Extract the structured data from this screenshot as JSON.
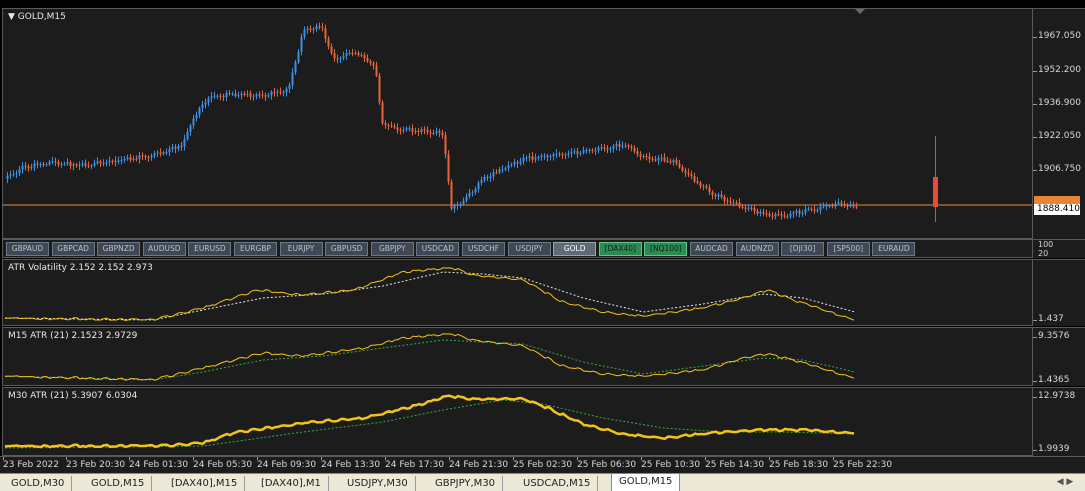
{
  "main_chart": {
    "title": "GOLD,M15",
    "price_levels": [
      "1967.050",
      "1952.200",
      "1936.900",
      "1922.050",
      "1906.750"
    ],
    "current_price": "1888.410",
    "colors": {
      "bull": "#3b8fe6",
      "bear": "#e8643a",
      "price_line": "#e88a3a",
      "pending_bar": "#e84a3a"
    }
  },
  "symbol_buttons": [
    {
      "label": "GBPAUD",
      "state": "normal"
    },
    {
      "label": "GBPCAD",
      "state": "normal"
    },
    {
      "label": "GBPNZD",
      "state": "normal"
    },
    {
      "label": "AUDUSD",
      "state": "normal"
    },
    {
      "label": "EURUSD",
      "state": "normal"
    },
    {
      "label": "EURGBP",
      "state": "normal"
    },
    {
      "label": "EURJPY",
      "state": "normal"
    },
    {
      "label": "GBPUSD",
      "state": "normal"
    },
    {
      "label": "GBPJPY",
      "state": "normal"
    },
    {
      "label": "USDCAD",
      "state": "normal"
    },
    {
      "label": "USDCHF",
      "state": "normal"
    },
    {
      "label": "USDJPY",
      "state": "normal"
    },
    {
      "label": "GOLD",
      "state": "active"
    },
    {
      "label": "[DAX40]",
      "state": "green"
    },
    {
      "label": "[NQ100]",
      "state": "green"
    },
    {
      "label": "AUDCAD",
      "state": "normal"
    },
    {
      "label": "AUDNZD",
      "state": "normal"
    },
    {
      "label": "[DJI30]",
      "state": "normal"
    },
    {
      "label": "[SP500]",
      "state": "normal"
    },
    {
      "label": "EURAUD",
      "state": "normal"
    }
  ],
  "symbol_bar_scale": [
    "100",
    "20"
  ],
  "indicator_panes": [
    {
      "label": "ATR Volatility 2.152 2.152 2.973",
      "scale_top": "",
      "scale_bottom": "1.437"
    },
    {
      "label": "M15  ATR (21) 2.1523 2.9729",
      "scale_top": "9.3576",
      "scale_bottom": "1.4365"
    },
    {
      "label": "M30  ATR (21) 5.3907 6.0304",
      "scale_top": "12.9738",
      "scale_bottom": "1.9939"
    }
  ],
  "time_labels": [
    "23 Feb 2022",
    "23 Feb 20:30",
    "24 Feb 01:30",
    "24 Feb 05:30",
    "24 Feb 09:30",
    "24 Feb 13:30",
    "24 Feb 17:30",
    "24 Feb 21:30",
    "25 Feb 02:30",
    "25 Feb 06:30",
    "25 Feb 10:30",
    "25 Feb 14:30",
    "25 Feb 18:30",
    "25 Feb 22:30"
  ],
  "tabs": [
    {
      "label": "GOLD,M30",
      "active": false
    },
    {
      "label": "GOLD,M15",
      "active": false
    },
    {
      "label": "[DAX40],M15",
      "active": false
    },
    {
      "label": "[DAX40],M1",
      "active": false
    },
    {
      "label": "USDJPY,M30",
      "active": false
    },
    {
      "label": "GBPJPY,M30",
      "active": false
    },
    {
      "label": "USDCAD,M15",
      "active": false
    },
    {
      "label": "GOLD,M15",
      "active": true
    }
  ],
  "tab_scroll_icon": "scroll-arrows-icon"
}
